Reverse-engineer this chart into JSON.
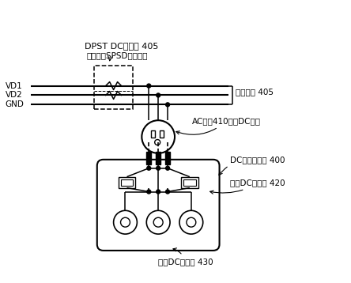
{
  "bg_color": "#ffffff",
  "line_color": "#000000",
  "labels": {
    "dpst": "DPST DC断路器 405",
    "dpst2": "（或两个SPSD断路器）",
    "vd1": "VD1",
    "vd2": "VD2",
    "gnd": "GND",
    "dist": "配电电路 405",
    "ac": "AC插座410，双DC电力",
    "dc_acc": "DC电力附接件 400",
    "dc1": "第一DC连接器 420",
    "dc2": "第二DC连接器 430"
  },
  "figsize": [
    4.44,
    3.58
  ],
  "dpi": 100
}
